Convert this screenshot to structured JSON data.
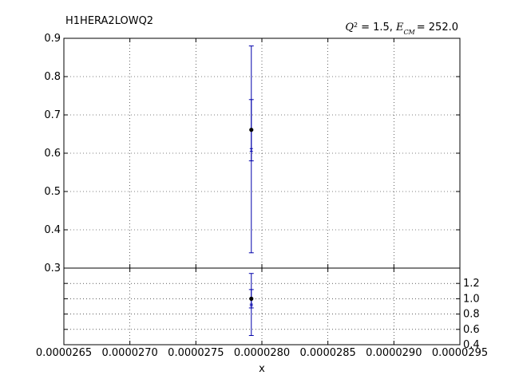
{
  "chart_data": [
    {
      "type": "scatter",
      "title": "H1HERA2LOWQ2",
      "subtitle_parts": {
        "q2_symbol": "Q",
        "q2_value": "= 1.5,",
        "ecm_symbol": "E",
        "ecm_sub": "CM",
        "ecm_value": "= 252.0"
      },
      "xlim": [
        2.65e-05,
        2.95e-05
      ],
      "ylim": [
        0.3,
        0.9
      ],
      "yticks": [
        "0.3",
        "0.4",
        "0.5",
        "0.6",
        "0.7",
        "0.8",
        "0.9"
      ],
      "grid": true,
      "points": [
        {
          "x": 2.792e-05,
          "y": 0.661,
          "err_outer": [
            0.34,
            0.88
          ],
          "err_inner": [
            0.58,
            0.74
          ],
          "err_theory": [
            0.605,
            0.612
          ]
        }
      ]
    },
    {
      "type": "scatter",
      "xlabel": "x",
      "xlim": [
        2.65e-05,
        2.95e-05
      ],
      "ylim": [
        0.4,
        1.4
      ],
      "xticks": [
        "0.0000265",
        "0.0000270",
        "0.0000275",
        "0.0000280",
        "0.0000285",
        "0.0000290",
        "0.0000295"
      ],
      "yticks": [
        "0.4",
        "0.6",
        "0.8",
        "1.0",
        "1.2"
      ],
      "grid": true,
      "points": [
        {
          "x": 2.792e-05,
          "y": 1.0,
          "err_outer": [
            0.52,
            1.33
          ],
          "err_inner": [
            0.88,
            1.12
          ],
          "err_theory": [
            0.91,
            0.93
          ]
        }
      ]
    }
  ],
  "colors": {
    "marker": "#000000",
    "errorbar": "#0000aa",
    "grid": "#000000",
    "axes": "#000000"
  }
}
